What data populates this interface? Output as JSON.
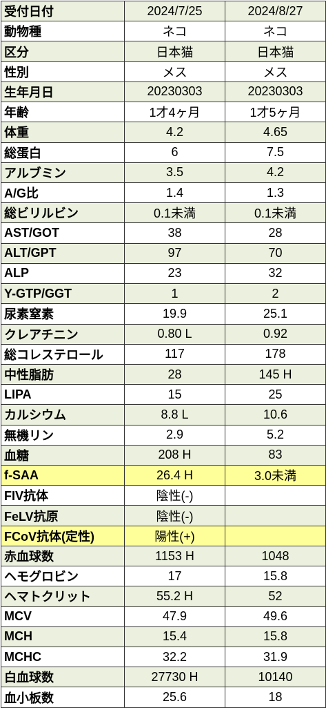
{
  "colors": {
    "row_shade": "#EBF1DE",
    "row_white": "#FFFFFF",
    "row_highlight": "#FFFF99",
    "border": "#333333"
  },
  "rows": [
    {
      "label": "受付日付",
      "v1": "2024/7/25",
      "v2": "2024/8/27"
    },
    {
      "label": "動物種",
      "v1": "ネコ",
      "v2": "ネコ"
    },
    {
      "label": "区分",
      "v1": "日本猫",
      "v2": "日本猫"
    },
    {
      "label": "性別",
      "v1": "メス",
      "v2": "メス"
    },
    {
      "label": "生年月日",
      "v1": "20230303",
      "v2": "20230303"
    },
    {
      "label": "年齢",
      "v1": "1才4ヶ月",
      "v2": "1才5ヶ月"
    },
    {
      "label": "体重",
      "v1": "4.2",
      "v2": "4.65"
    },
    {
      "label": "総蛋白",
      "v1": "6",
      "v2": "7.5"
    },
    {
      "label": "アルブミン",
      "v1": "3.5",
      "v2": "4.2"
    },
    {
      "label": "A/G比",
      "v1": "1.4",
      "v2": "1.3"
    },
    {
      "label": "総ビリルビン",
      "v1": "0.1未満",
      "v2": "0.1未満"
    },
    {
      "label": "AST/GOT",
      "v1": "38",
      "v2": "28"
    },
    {
      "label": "ALT/GPT",
      "v1": "97",
      "v2": "70"
    },
    {
      "label": "ALP",
      "v1": "23",
      "v2": "32"
    },
    {
      "label": "Y-GTP/GGT",
      "v1": "1",
      "v2": "2"
    },
    {
      "label": "尿素窒素",
      "v1": "19.9",
      "v2": "25.1"
    },
    {
      "label": "クレアチニン",
      "v1": "0.80 L",
      "v2": "0.92"
    },
    {
      "label": "総コレステロール",
      "v1": "117",
      "v2": "178"
    },
    {
      "label": "中性脂肪",
      "v1": "28",
      "v2": "145 H"
    },
    {
      "label": "LIPA",
      "v1": "15",
      "v2": "25"
    },
    {
      "label": "カルシウム",
      "v1": "8.8 L",
      "v2": "10.6"
    },
    {
      "label": "無機リン",
      "v1": "2.9",
      "v2": "5.2"
    },
    {
      "label": "血糖",
      "v1": "208 H",
      "v2": "83"
    },
    {
      "label": "f-SAA",
      "v1": "26.4 H",
      "v2": "3.0未満"
    },
    {
      "label": "FIV抗体",
      "v1": "陰性(-)",
      "v2": ""
    },
    {
      "label": "FeLV抗原",
      "v1": "陰性(-)",
      "v2": ""
    },
    {
      "label": "FCoV抗体(定性)",
      "v1": "陽性(+)",
      "v2": ""
    },
    {
      "label": "赤血球数",
      "v1": "1153 H",
      "v2": "1048"
    },
    {
      "label": "ヘモグロビン",
      "v1": "17",
      "v2": "15.8"
    },
    {
      "label": "ヘマトクリット",
      "v1": "55.2 H",
      "v2": "52"
    },
    {
      "label": "MCV",
      "v1": "47.9",
      "v2": "49.6"
    },
    {
      "label": "MCH",
      "v1": "15.4",
      "v2": "15.8"
    },
    {
      "label": "MCHC",
      "v1": "32.2",
      "v2": "31.9"
    },
    {
      "label": "白血球数",
      "v1": "27730 H",
      "v2": "10140"
    },
    {
      "label": "血小板数",
      "v1": "25.6",
      "v2": "18"
    }
  ]
}
